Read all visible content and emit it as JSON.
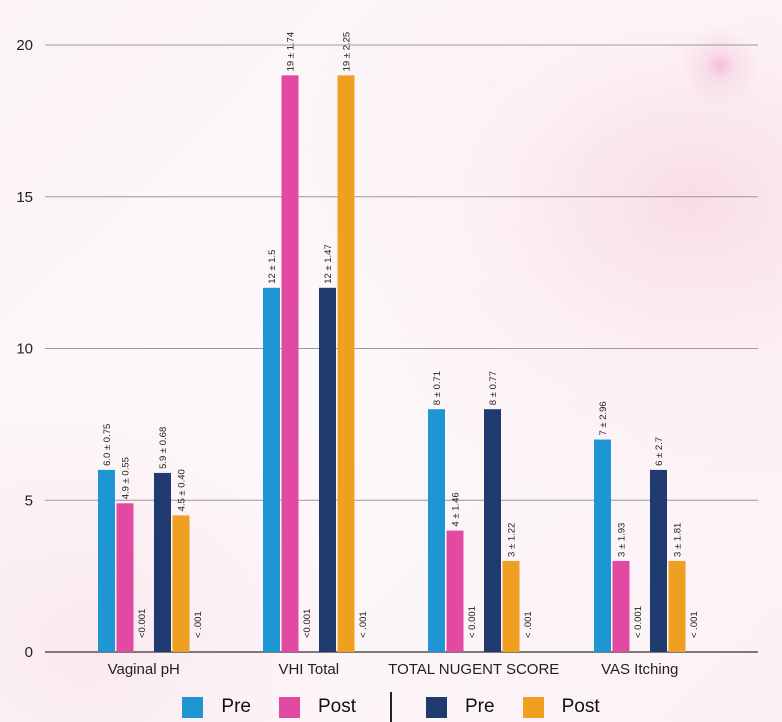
{
  "chart_data": {
    "type": "bar",
    "categories": [
      "Vaginal pH",
      "VHI Total",
      "TOTAL NUGENT SCORE",
      "VAS Itching"
    ],
    "series": [
      {
        "name": "Pre",
        "color": "#1f96d4",
        "values": [
          6.0,
          12,
          8,
          7
        ],
        "labels": [
          "6.0 ± 0.75",
          "12 ± 1.5",
          "8 ± 0.71",
          "7 ± 2.96"
        ]
      },
      {
        "name": "Post",
        "color": "#e14aa0",
        "values": [
          4.9,
          19,
          4,
          3
        ],
        "labels": [
          "4.9 ± 0.55",
          "19 ± 1.74",
          "4 ± 1.46",
          "3 ± 1.93"
        ]
      },
      {
        "name": "Pre",
        "color": "#1e3a6e",
        "values": [
          5.9,
          12,
          8,
          6
        ],
        "labels": [
          "5.9 ± 0.68",
          "12 ± 1.47",
          "8 ± 0.77",
          "6 ± 2.7"
        ]
      },
      {
        "name": "Post",
        "color": "#f0a020",
        "values": [
          4.5,
          19,
          3,
          3
        ],
        "labels": [
          "4.5 ± 0.40",
          "19 ± 2.25",
          "3 ± 1.22",
          "3 ± 1.81"
        ]
      }
    ],
    "p_values": {
      "group1": [
        "<0.001",
        "<0.001",
        "< 0.001",
        "< 0.001"
      ],
      "group2": [
        "< .001",
        "< .001",
        "< .001",
        "< .001"
      ]
    },
    "yticks": [
      "0",
      "5",
      "10",
      "15",
      "20"
    ],
    "ylim": [
      0,
      20
    ],
    "grid": true,
    "legend_position": "bottom"
  }
}
